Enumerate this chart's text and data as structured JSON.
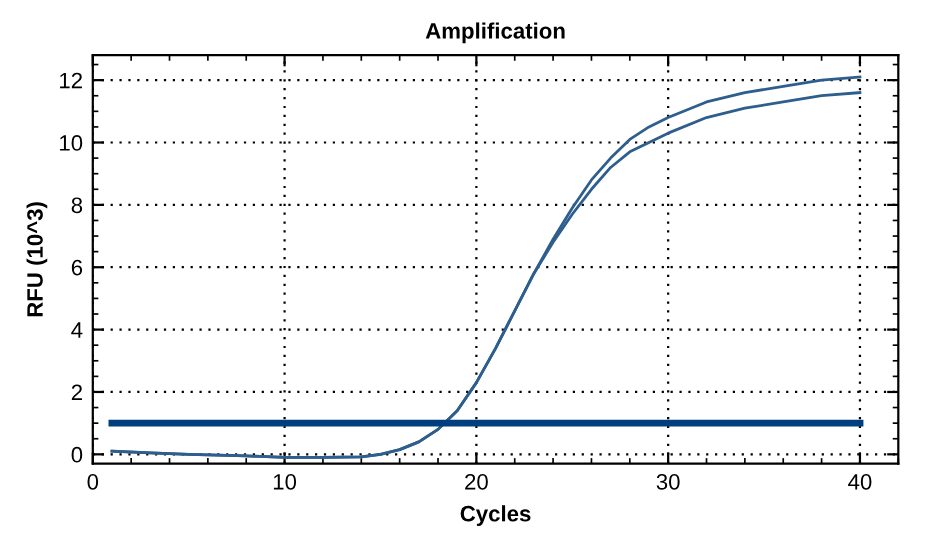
{
  "chart_data": {
    "type": "line",
    "title": "Amplification",
    "xlabel": "Cycles",
    "ylabel": "RFU (10^3)",
    "xlim": [
      0,
      42
    ],
    "ylim": [
      -0.3,
      12.8
    ],
    "xticks": [
      0,
      10,
      20,
      30,
      40
    ],
    "yticks": [
      0,
      2,
      4,
      6,
      8,
      10,
      12
    ],
    "grid": true,
    "marker": "none",
    "line_style": "solid",
    "series": [
      {
        "color": "#2e5e8e",
        "x": [
          1,
          3,
          5,
          8,
          10,
          12,
          14,
          15,
          16,
          17,
          18,
          19,
          20,
          21,
          22,
          23,
          24,
          25,
          26,
          27,
          28,
          29,
          30,
          32,
          34,
          36,
          38,
          40
        ],
        "values": [
          0.1,
          0.05,
          0.0,
          -0.05,
          -0.1,
          -0.1,
          -0.08,
          0.0,
          0.15,
          0.4,
          0.8,
          1.4,
          2.3,
          3.4,
          4.6,
          5.8,
          6.9,
          7.9,
          8.8,
          9.5,
          10.1,
          10.5,
          10.8,
          11.3,
          11.6,
          11.8,
          12.0,
          12.1
        ]
      },
      {
        "color": "#2e5e8e",
        "x": [
          1,
          3,
          5,
          8,
          10,
          12,
          14,
          15,
          16,
          17,
          18,
          19,
          20,
          21,
          22,
          23,
          24,
          25,
          26,
          27,
          28,
          29,
          30,
          32,
          34,
          36,
          38,
          40
        ],
        "values": [
          0.1,
          0.05,
          0.0,
          -0.05,
          -0.1,
          -0.1,
          -0.08,
          0.0,
          0.15,
          0.4,
          0.8,
          1.4,
          2.3,
          3.4,
          4.6,
          5.8,
          6.8,
          7.7,
          8.5,
          9.2,
          9.7,
          10.0,
          10.3,
          10.8,
          11.1,
          11.3,
          11.5,
          11.6
        ]
      },
      {
        "color": "#003f7f",
        "x": [
          1,
          40
        ],
        "values": [
          1,
          1
        ]
      }
    ]
  }
}
